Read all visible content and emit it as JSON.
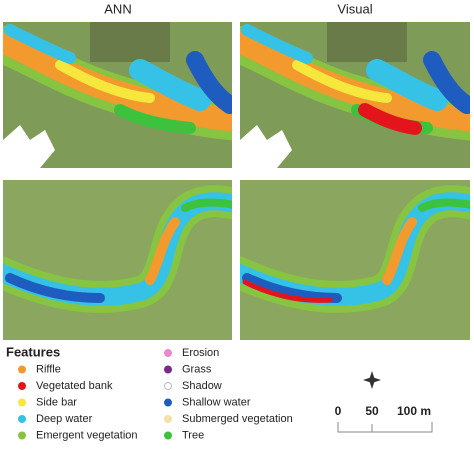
{
  "columns": [
    "ANN",
    "Visual"
  ],
  "legend": {
    "title": "Features",
    "items": [
      {
        "label": "Riffle",
        "color": "#f29a2e"
      },
      {
        "label": "Vegetated bank",
        "color": "#e3141b"
      },
      {
        "label": "Side bar",
        "color": "#f6e73c"
      },
      {
        "label": "Deep water",
        "color": "#36c2e6"
      },
      {
        "label": "Emergent vegetation",
        "color": "#86c441"
      },
      {
        "label": "Erosion",
        "color": "#ee86cc"
      },
      {
        "label": "Grass",
        "color": "#7a2a8c"
      },
      {
        "label": "Shadow",
        "color": "#ffffff"
      },
      {
        "label": "Shallow water",
        "color": "#1f5cc0"
      },
      {
        "label": "Submerged vegetation",
        "color": "#f6dfa8"
      },
      {
        "label": "Tree",
        "color": "#3dc23d"
      }
    ]
  },
  "scale_bar": {
    "labels": [
      "0",
      "50",
      "100 m"
    ]
  }
}
